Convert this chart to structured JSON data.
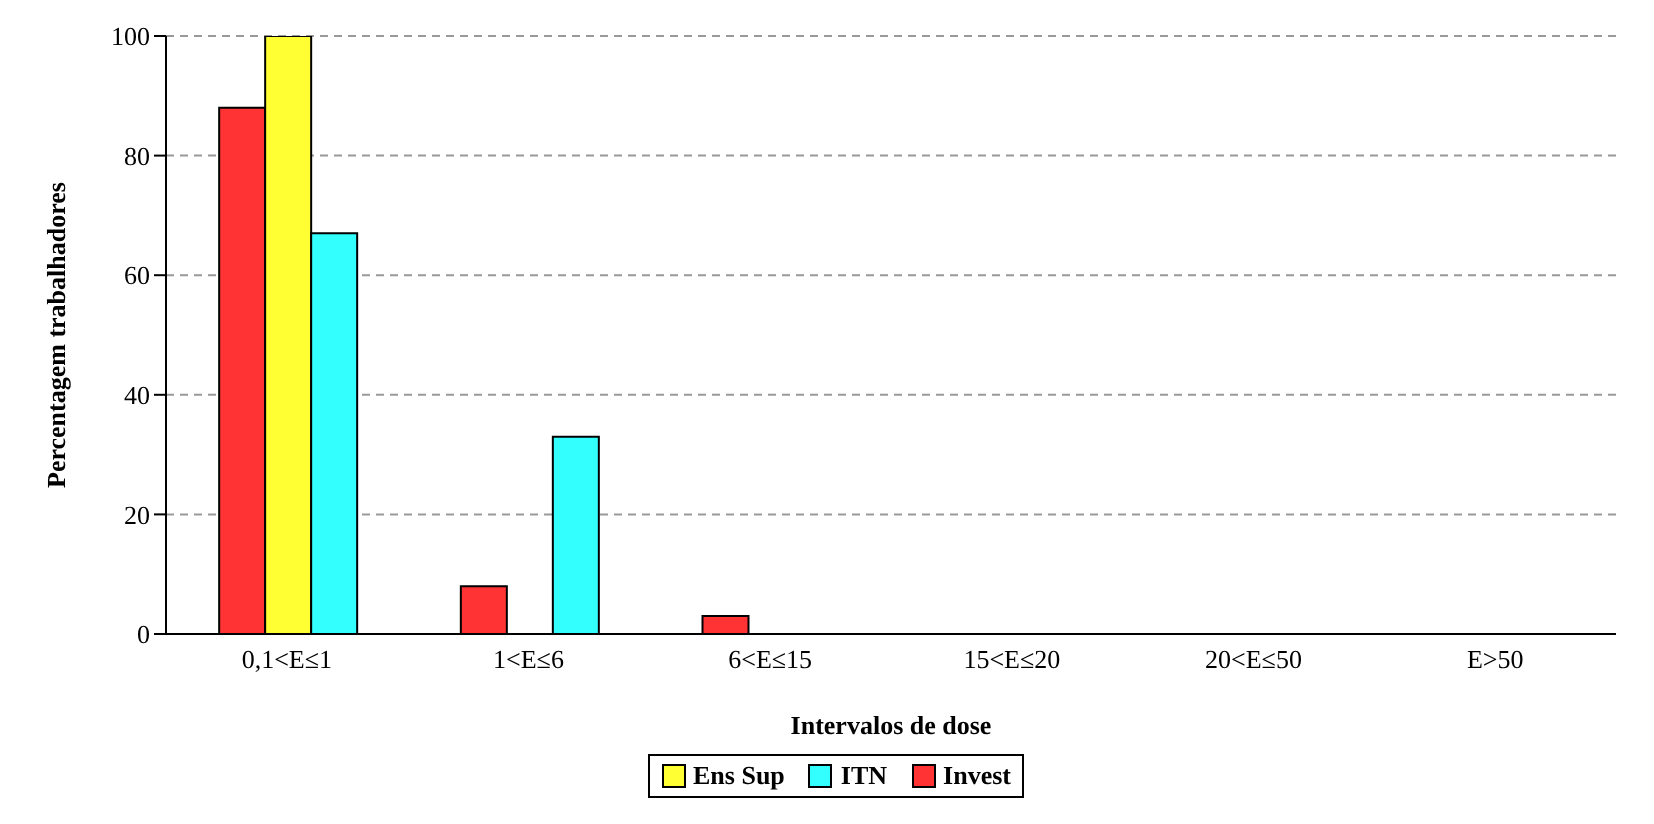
{
  "chart_data": {
    "type": "bar",
    "xlabel": "Intervalos de dose",
    "ylabel": "Percentagem trabalhadores",
    "categories": [
      "0,1<E≤1",
      "1<E≤6",
      "6<E≤15",
      "15<E≤20",
      "20<E≤50",
      "E>50"
    ],
    "series": [
      {
        "name": "Invest",
        "color": "#ff3333",
        "values": [
          88,
          8,
          3,
          0,
          0,
          0
        ]
      },
      {
        "name": "Ens Sup",
        "color": "#ffff33",
        "values": [
          100,
          0,
          0,
          0,
          0,
          0
        ]
      },
      {
        "name": "ITN",
        "color": "#33ffff",
        "values": [
          67,
          33,
          0,
          0,
          0,
          0
        ]
      }
    ],
    "ylim": [
      0,
      100
    ],
    "yticks": [
      0,
      20,
      40,
      60,
      80,
      100
    ],
    "grid": "y",
    "legend": "bottom"
  }
}
